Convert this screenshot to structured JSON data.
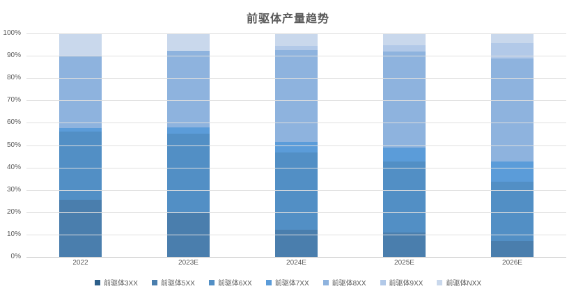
{
  "chart_data": {
    "type": "bar",
    "subtype": "stacked-100",
    "title": "前驱体产量趋势",
    "categories": [
      "2022",
      "2023E",
      "2024E",
      "2025E",
      "2026E"
    ],
    "series": [
      {
        "name": "前驱体3XX",
        "color": "#2d5f8a",
        "values": [
          0,
          0,
          0,
          0,
          0
        ]
      },
      {
        "name": "前驱体5XX",
        "color": "#4a7ead",
        "values": [
          25.7,
          19.5,
          12.1,
          11.0,
          7.1
        ]
      },
      {
        "name": "前驱体6XX",
        "color": "#528fc5",
        "values": [
          30.4,
          35.5,
          34.7,
          31.7,
          26.5
        ]
      },
      {
        "name": "前驱体7XX",
        "color": "#5b9cd9",
        "values": [
          1.5,
          3.0,
          4.7,
          6.3,
          9.2
        ]
      },
      {
        "name": "前驱体8XX",
        "color": "#8eb3de",
        "values": [
          32.4,
          34.2,
          41.0,
          42.9,
          46.1
        ]
      },
      {
        "name": "前驱体9XX",
        "color": "#b2c9e8",
        "values": [
          0,
          0,
          1.9,
          2.8,
          6.6
        ]
      },
      {
        "name": "前驱体NXX",
        "color": "#c9d8ec",
        "values": [
          10.0,
          7.8,
          5.6,
          5.3,
          4.5
        ]
      }
    ],
    "ylabel": "",
    "xlabel": "",
    "ylim": [
      0,
      100
    ],
    "y_ticks": [
      "0%",
      "10%",
      "20%",
      "30%",
      "40%",
      "50%",
      "60%",
      "70%",
      "80%",
      "90%",
      "100%"
    ],
    "grid": true,
    "legend_position": "bottom",
    "gridline_color": "#dedede",
    "axis_line_color": "#c6c6c6",
    "text_color": "#595959"
  }
}
